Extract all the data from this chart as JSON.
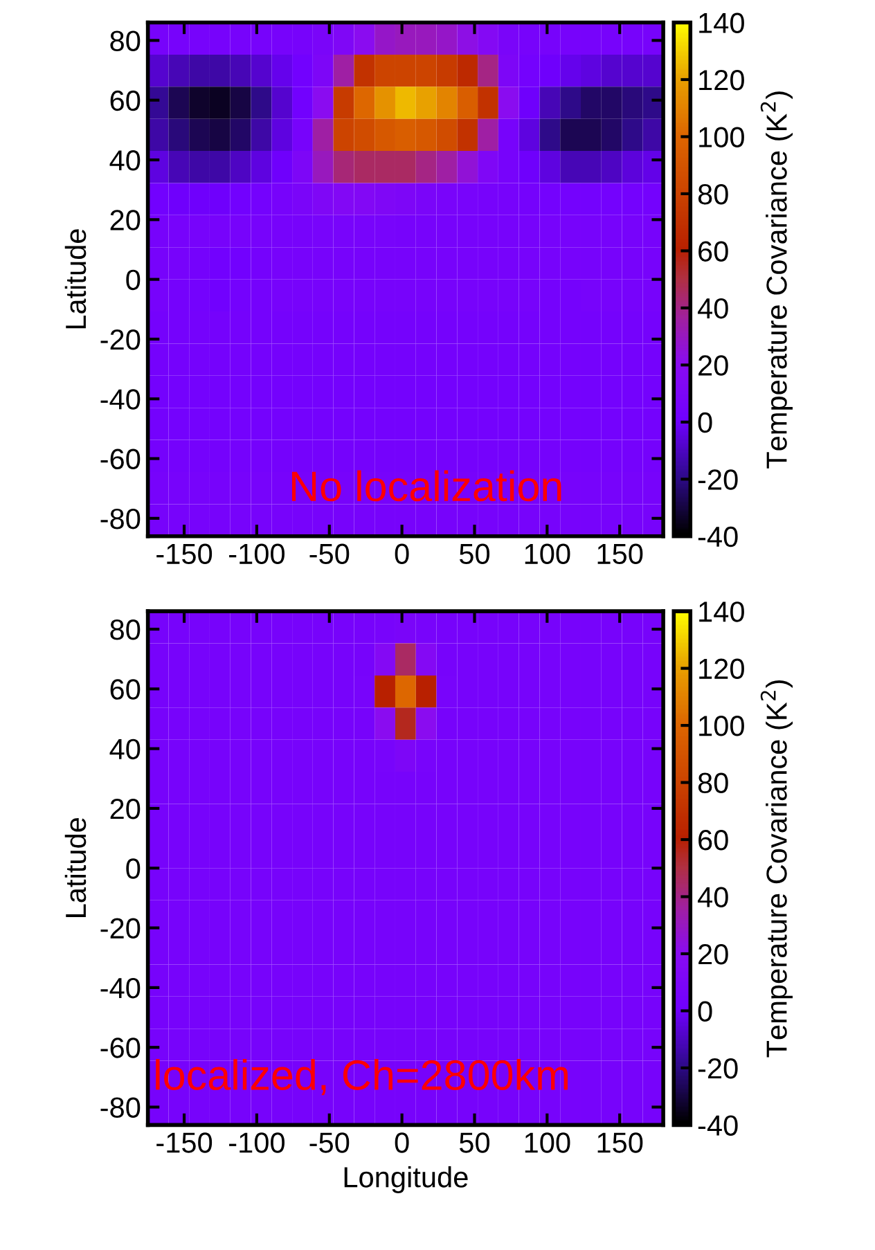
{
  "chart_data": [
    {
      "type": "heatmap",
      "ylabel": "Latitude",
      "clabel": "Temperature Covariance (K$^{2}$)",
      "annotations": [
        "No localization"
      ],
      "xlim": [
        -175,
        180
      ],
      "xticks": [
        -150,
        -100,
        -50,
        0,
        50,
        100,
        150
      ],
      "ylim": [
        -86,
        86
      ],
      "yticks": [
        -80,
        -60,
        -40,
        -20,
        0,
        20,
        40,
        60,
        80
      ],
      "clim": [
        -40,
        140
      ],
      "cticks": [
        -40,
        -20,
        0,
        20,
        40,
        60,
        80,
        100,
        120,
        140
      ],
      "cells": [
        [
          5,
          5,
          5,
          5,
          5,
          5,
          5,
          5,
          8,
          12,
          20,
          28,
          30,
          30,
          28,
          22,
          15,
          8,
          5,
          5,
          5,
          5,
          5,
          5,
          5
        ],
        [
          -8,
          -12,
          -15,
          -15,
          -12,
          -8,
          -3,
          2,
          10,
          35,
          70,
          80,
          80,
          80,
          75,
          65,
          40,
          10,
          3,
          0,
          -3,
          -5,
          -8,
          -8,
          -8
        ],
        [
          -18,
          -28,
          -33,
          -35,
          -30,
          -20,
          -8,
          2,
          20,
          75,
          100,
          115,
          125,
          120,
          110,
          95,
          70,
          20,
          0,
          -12,
          -20,
          -25,
          -25,
          -22,
          -20
        ],
        [
          -15,
          -22,
          -28,
          -30,
          -25,
          -15,
          -5,
          5,
          35,
          80,
          85,
          92,
          95,
          92,
          85,
          70,
          35,
          5,
          -5,
          -20,
          -28,
          -28,
          -25,
          -20,
          -15
        ],
        [
          -5,
          -12,
          -15,
          -15,
          -10,
          -5,
          0,
          10,
          30,
          42,
          45,
          45,
          45,
          40,
          35,
          25,
          12,
          5,
          0,
          -5,
          -12,
          -12,
          -10,
          -6,
          -4
        ],
        [
          2,
          0,
          0,
          0,
          2,
          3,
          5,
          8,
          12,
          14,
          14,
          12,
          10,
          8,
          7,
          6,
          5,
          5,
          4,
          3,
          3,
          3,
          3,
          3,
          3
        ],
        [
          5,
          5,
          5,
          5,
          5,
          5,
          5,
          5,
          6,
          6,
          6,
          6,
          5,
          5,
          5,
          5,
          5,
          5,
          5,
          5,
          5,
          5,
          5,
          5,
          5
        ],
        [
          5,
          5,
          4,
          2,
          2,
          4,
          5,
          5,
          5,
          5,
          5,
          5,
          5,
          5,
          5,
          5,
          5,
          5,
          5,
          5,
          5,
          5,
          5,
          5,
          5
        ],
        [
          5,
          4,
          3,
          1,
          3,
          4,
          5,
          5,
          5,
          5,
          5,
          5,
          5,
          5,
          5,
          5,
          5,
          5,
          5,
          4,
          4,
          5,
          5,
          5,
          5
        ],
        [
          4,
          4,
          4,
          4,
          4,
          4,
          4,
          4,
          4,
          4,
          4,
          4,
          4,
          4,
          4,
          4,
          4,
          4,
          4,
          4,
          4,
          4,
          4,
          4,
          4
        ],
        [
          4,
          4,
          4,
          4,
          4,
          4,
          4,
          4,
          4,
          4,
          4,
          4,
          4,
          4,
          4,
          4,
          4,
          4,
          4,
          4,
          4,
          4,
          4,
          4,
          4
        ],
        [
          3,
          3,
          3,
          3,
          3,
          3,
          3,
          3,
          3,
          3,
          3,
          3,
          3,
          3,
          3,
          3,
          3,
          3,
          3,
          3,
          3,
          3,
          3,
          3,
          3
        ],
        [
          3,
          3,
          3,
          3,
          3,
          3,
          3,
          3,
          3,
          3,
          3,
          3,
          3,
          3,
          3,
          3,
          3,
          3,
          3,
          3,
          3,
          3,
          3,
          3,
          3
        ],
        [
          4,
          4,
          4,
          4,
          4,
          4,
          4,
          4,
          4,
          4,
          4,
          4,
          4,
          4,
          4,
          4,
          4,
          4,
          4,
          4,
          4,
          4,
          4,
          4,
          4
        ],
        [
          5,
          5,
          5,
          5,
          5,
          5,
          5,
          5,
          5,
          5,
          5,
          5,
          5,
          5,
          5,
          5,
          5,
          5,
          5,
          5,
          5,
          5,
          5,
          5,
          5
        ],
        [
          5,
          5,
          5,
          5,
          5,
          5,
          5,
          5,
          5,
          5,
          5,
          5,
          5,
          5,
          5,
          5,
          5,
          5,
          5,
          5,
          5,
          5,
          5,
          5,
          5
        ]
      ]
    },
    {
      "type": "heatmap",
      "xlabel": "Longitude",
      "ylabel": "Latitude",
      "clabel": "Temperature Covariance (K$^{2}$)",
      "annotations": [
        "localized, Ch=2800km"
      ],
      "xlim": [
        -175,
        180
      ],
      "xticks": [
        -150,
        -100,
        -50,
        0,
        50,
        100,
        150
      ],
      "ylim": [
        -86,
        86
      ],
      "yticks": [
        -80,
        -60,
        -40,
        -20,
        0,
        20,
        40,
        60,
        80
      ],
      "clim": [
        -40,
        140
      ],
      "cticks": [
        -40,
        -20,
        0,
        20,
        40,
        60,
        80,
        100,
        120,
        140
      ],
      "cells": [
        [
          5,
          5,
          5,
          5,
          5,
          5,
          5,
          5,
          5,
          5,
          5,
          6,
          8,
          6,
          5,
          5,
          5,
          5,
          5,
          5,
          5,
          5,
          5,
          5,
          5
        ],
        [
          5,
          5,
          5,
          5,
          5,
          5,
          5,
          5,
          5,
          5,
          5,
          15,
          45,
          15,
          5,
          5,
          5,
          5,
          5,
          5,
          5,
          5,
          5,
          5,
          5
        ],
        [
          5,
          5,
          5,
          5,
          5,
          5,
          5,
          5,
          5,
          5,
          6,
          60,
          100,
          60,
          6,
          5,
          5,
          5,
          5,
          5,
          5,
          5,
          5,
          5,
          5
        ],
        [
          5,
          5,
          5,
          5,
          5,
          5,
          5,
          5,
          5,
          5,
          5,
          20,
          55,
          20,
          5,
          5,
          5,
          5,
          5,
          5,
          5,
          5,
          5,
          5,
          5
        ],
        [
          5,
          5,
          5,
          5,
          5,
          5,
          5,
          5,
          5,
          5,
          5,
          6,
          10,
          6,
          5,
          5,
          5,
          5,
          5,
          5,
          5,
          5,
          5,
          5,
          5
        ],
        [
          5,
          5,
          5,
          5,
          5,
          5,
          5,
          5,
          5,
          5,
          5,
          5,
          5,
          5,
          5,
          5,
          5,
          5,
          5,
          5,
          5,
          5,
          5,
          5,
          5
        ],
        [
          5,
          5,
          5,
          5,
          5,
          5,
          5,
          5,
          5,
          5,
          5,
          5,
          5,
          5,
          5,
          5,
          5,
          5,
          5,
          5,
          5,
          5,
          5,
          5,
          5
        ],
        [
          5,
          5,
          5,
          5,
          5,
          5,
          5,
          5,
          5,
          5,
          5,
          5,
          5,
          5,
          5,
          5,
          5,
          5,
          5,
          5,
          5,
          5,
          5,
          5,
          5
        ],
        [
          5,
          5,
          5,
          5,
          5,
          5,
          5,
          5,
          5,
          5,
          5,
          5,
          5,
          5,
          5,
          5,
          5,
          5,
          5,
          5,
          5,
          5,
          5,
          5,
          5
        ],
        [
          5,
          5,
          5,
          5,
          5,
          5,
          5,
          5,
          5,
          5,
          5,
          5,
          5,
          5,
          5,
          5,
          5,
          5,
          5,
          5,
          5,
          5,
          5,
          5,
          5
        ],
        [
          5,
          5,
          5,
          5,
          5,
          5,
          5,
          5,
          5,
          5,
          5,
          5,
          5,
          5,
          5,
          5,
          5,
          5,
          5,
          5,
          5,
          5,
          5,
          5,
          5
        ],
        [
          5,
          5,
          5,
          5,
          5,
          5,
          5,
          5,
          5,
          5,
          5,
          5,
          5,
          5,
          5,
          5,
          5,
          5,
          5,
          5,
          5,
          5,
          5,
          5,
          5
        ],
        [
          5,
          5,
          5,
          5,
          5,
          5,
          5,
          5,
          5,
          5,
          5,
          5,
          5,
          5,
          5,
          5,
          5,
          5,
          5,
          5,
          5,
          5,
          5,
          5,
          5
        ],
        [
          5,
          5,
          5,
          5,
          5,
          5,
          5,
          5,
          5,
          5,
          5,
          5,
          5,
          5,
          5,
          5,
          5,
          5,
          5,
          5,
          5,
          5,
          5,
          5,
          5
        ],
        [
          5,
          5,
          5,
          5,
          5,
          5,
          5,
          5,
          5,
          5,
          5,
          5,
          5,
          5,
          5,
          5,
          5,
          5,
          5,
          5,
          5,
          5,
          5,
          5,
          5
        ],
        [
          5,
          5,
          5,
          5,
          5,
          5,
          5,
          5,
          5,
          5,
          5,
          5,
          5,
          5,
          5,
          5,
          5,
          5,
          5,
          5,
          5,
          5,
          5,
          5,
          5
        ]
      ]
    }
  ]
}
